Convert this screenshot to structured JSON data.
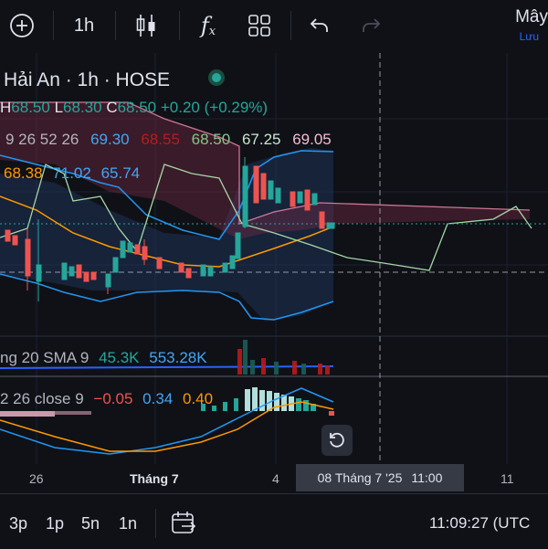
{
  "toolbar": {
    "timeframe": "1h",
    "indicators_label": "f",
    "indicators_sub": "x",
    "save_title": "Mây",
    "save_sub": "Lưu"
  },
  "legend": {
    "symbol": "Hải An · 1h · HOSE",
    "ohlc": {
      "h_label": "H",
      "h": "68.50",
      "l_label": "L",
      "l": "68.30",
      "c_label": "C",
      "c": "68.50",
      "change": "+0.20 (+0.29%)"
    },
    "ichimoku": {
      "params": "9 26 52 26",
      "v1": "69.30",
      "v2": "68.55",
      "v3": "68.50",
      "v4": "67.25",
      "v5": "69.05"
    },
    "bb": {
      "v1": "68.38",
      "v2": "71.02",
      "v3": "65.74"
    }
  },
  "volume_legend": {
    "params": "ng 20 SMA 9",
    "v1": "45.3K",
    "v2": "553.28K"
  },
  "macd_legend": {
    "params": "2 26 close 9",
    "v1": "−0.05",
    "v2": "0.34",
    "v3": "0.40"
  },
  "time_axis": {
    "ticks": [
      "26",
      "Tháng 7",
      "4",
      "11"
    ],
    "cursor_date": "08 Tháng 7 '25",
    "cursor_time": "11:00"
  },
  "ranges": [
    "3p",
    "1p",
    "5n",
    "1n"
  ],
  "clock": "11:09:27 (UTC",
  "colors": {
    "up": "#26a69a",
    "down": "#ef5350",
    "bb_basis": "#ff9800",
    "bb_band": "#2196f3",
    "cloud_red": "#f06292",
    "lagging": "#a5d6a7"
  },
  "icons": [
    "add-icon",
    "candles-icon",
    "indicators-icon",
    "layout-grid-icon",
    "undo-icon",
    "redo-icon",
    "status-dot-icon",
    "reset-icon",
    "calendar-goto-icon"
  ]
}
